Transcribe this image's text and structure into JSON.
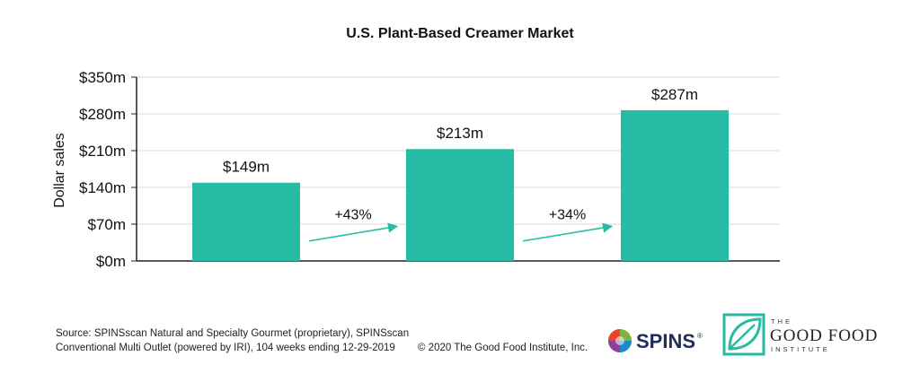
{
  "chart_data": {
    "type": "bar",
    "title": "U.S. Plant-Based Creamer Market",
    "categories": [
      "",
      "",
      ""
    ],
    "values": [
      149,
      213,
      287
    ],
    "data_labels": [
      "$149m",
      "$213m",
      "$287m"
    ],
    "ylabel": "Dollar sales",
    "xlabel": "",
    "ylim": [
      0,
      350
    ],
    "yticks": [
      0,
      70,
      140,
      210,
      280,
      350
    ],
    "ytick_labels": [
      "$0m",
      "$70m",
      "$140m",
      "$210m",
      "$280m",
      "$350m"
    ],
    "grid": true,
    "annotations": [
      {
        "text": "+43%",
        "from_bar": 0,
        "to_bar": 1
      },
      {
        "text": "+34%",
        "from_bar": 1,
        "to_bar": 2
      }
    ],
    "colors": {
      "bar": "#25bca3",
      "arrow": "#25bca3",
      "grid": "#d9d9d9",
      "axis": "#222222"
    }
  },
  "footer": {
    "source_line1": "Source: SPINSscan Natural and Specialty Gourmet (proprietary), SPINSscan",
    "source_line2": "Conventional Multi Outlet (powered by IRI), 104 weeks ending 12-29-2019",
    "copyright": "© 2020 The Good Food Institute, Inc."
  },
  "logos": {
    "spins": {
      "name": "SPINS",
      "mark": "®"
    },
    "gfi": {
      "line_the": "THE",
      "line_main": "GOOD  FOOD",
      "line_institute": "INSTITUTE",
      "color": "#25bca3"
    }
  }
}
